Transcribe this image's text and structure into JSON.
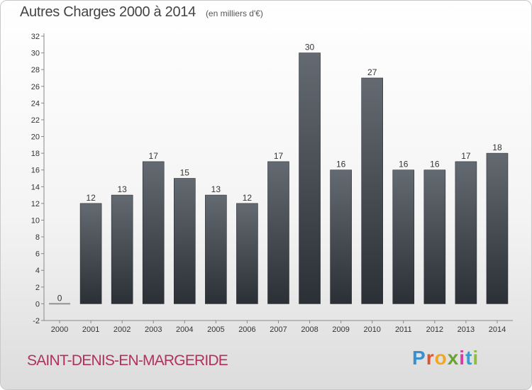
{
  "header": {
    "title": "Autres Charges 2000 à 2014",
    "unit": "(en milliers d'€)"
  },
  "footer": {
    "commune": "SAINT-DENIS-EN-MARGERIDE",
    "brand": "Proxiti"
  },
  "colors": {
    "bar_top": "#646a71",
    "bar_bottom": "#2b3036",
    "commune": "#b4305a",
    "brand_letters": [
      "#3a8fd0",
      "#e0532c",
      "#f2a81e",
      "#6aa232",
      "#d63fa0",
      "#2fa0d6",
      "#8bbf3a"
    ]
  },
  "chart_data": {
    "type": "bar",
    "title": "Autres Charges 2000 à 2014",
    "subtitle": "(en milliers d'€)",
    "categories": [
      "2000",
      "2001",
      "2002",
      "2003",
      "2004",
      "2005",
      "2006",
      "2007",
      "2008",
      "2009",
      "2010",
      "2011",
      "2012",
      "2013",
      "2014"
    ],
    "values": [
      0,
      12,
      13,
      17,
      15,
      13,
      12,
      17,
      30,
      16,
      27,
      16,
      16,
      17,
      18
    ],
    "ylim": [
      -2,
      32
    ],
    "yticks": [
      -2,
      0,
      2,
      4,
      6,
      8,
      10,
      12,
      14,
      16,
      18,
      20,
      22,
      24,
      26,
      28,
      30,
      32
    ],
    "grid": false,
    "legend": "none"
  }
}
